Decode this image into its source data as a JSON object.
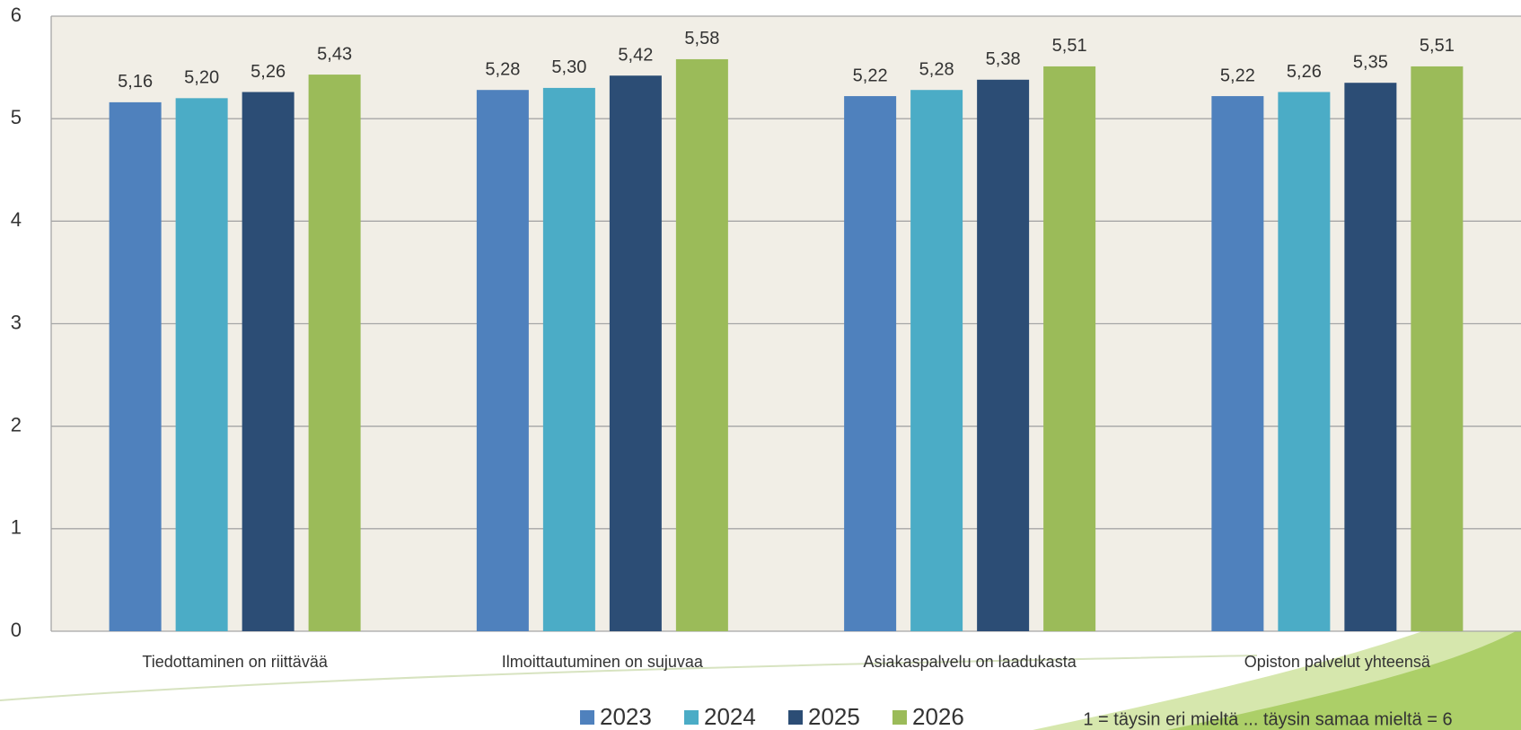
{
  "chart_data": {
    "type": "bar",
    "categories": [
      "Tiedottaminen on riittävää",
      "Ilmoittautuminen on sujuvaa",
      "Asiakaspalvelu on laadukasta",
      "Opiston palvelut yhteensä"
    ],
    "series": [
      {
        "name": "2023",
        "color": "#4f81bd",
        "values": [
          5.16,
          5.28,
          5.22,
          5.22
        ],
        "value_labels": [
          "5,16",
          "5,28",
          "5,22",
          "5,22"
        ]
      },
      {
        "name": "2024",
        "color": "#4bacc6",
        "values": [
          5.2,
          5.3,
          5.28,
          5.26
        ],
        "value_labels": [
          "5,20",
          "5,30",
          "5,28",
          "5,26"
        ]
      },
      {
        "name": "2025",
        "color": "#2c4d75",
        "values": [
          5.26,
          5.42,
          5.38,
          5.35
        ],
        "value_labels": [
          "5,26",
          "5,42",
          "5,38",
          "5,35"
        ]
      },
      {
        "name": "2026",
        "color": "#9bbb59",
        "values": [
          5.43,
          5.58,
          5.51,
          5.51
        ],
        "value_labels": [
          "5,43",
          "5,58",
          "5,51",
          "5,51"
        ]
      }
    ],
    "ylim": [
      0,
      6
    ],
    "yticks": [
      0,
      1,
      2,
      3,
      4,
      5,
      6
    ],
    "grid": true,
    "note": "1 = täysin eri mieltä ... täysin samaa mieltä = 6"
  }
}
